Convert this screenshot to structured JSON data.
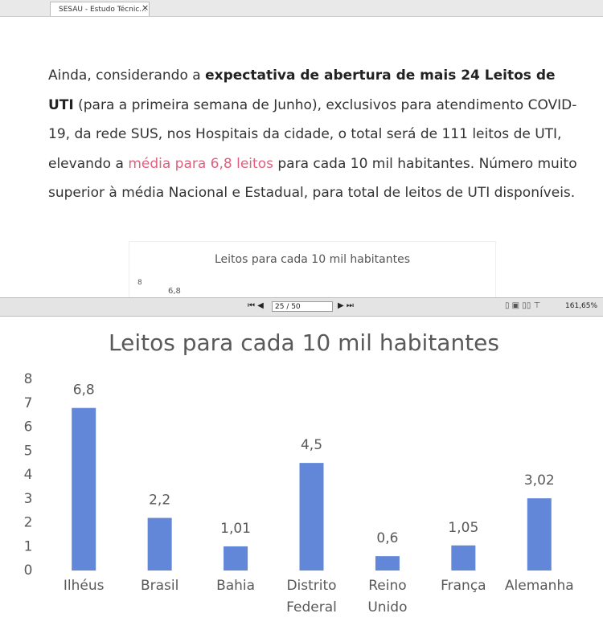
{
  "tab": {
    "title": "SESAU - Estudo Técnic..."
  },
  "document": {
    "paragraph": {
      "before": "Ainda, considerando a ",
      "bold": "expectativa de abertura de mais 24 Leitos de UTI",
      "middle": " (para a primeira semana de Junho), exclusivos para atendimento COVID-19, da rede SUS, nos Hospitais da cidade, o total será de 111 leitos de UTI, elevando a ",
      "highlight": "média para 6,8 leitos",
      "after": " para cada 10 mil habitantes. Número muito superior à média Nacional e Estadual, para total de leitos de UTI disponíveis."
    },
    "preview": {
      "title": "Leitos para cada 10 mil habitantes",
      "tick": "8",
      "value_label": "6,8"
    }
  },
  "toolbar": {
    "page": "25 / 50",
    "zoom": "161,65%"
  },
  "chart_data": {
    "type": "bar",
    "title": "Leitos para cada 10 mil habitantes",
    "categories": [
      "Ilhéus",
      "Brasil",
      "Bahia",
      "Distrito Federal",
      "Reino Unido",
      "França",
      "Alemanha"
    ],
    "values": [
      6.8,
      2.2,
      1.01,
      4.5,
      0.6,
      1.05,
      3.02
    ],
    "value_labels": [
      "6,8",
      "2,2",
      "1,01",
      "4,5",
      "0,6",
      "1,05",
      "3,02"
    ],
    "color": "#6286d8",
    "ylim": [
      0,
      8
    ],
    "yticks": [
      0,
      1,
      2,
      3,
      4,
      5,
      6,
      7,
      8
    ],
    "grid": false
  }
}
